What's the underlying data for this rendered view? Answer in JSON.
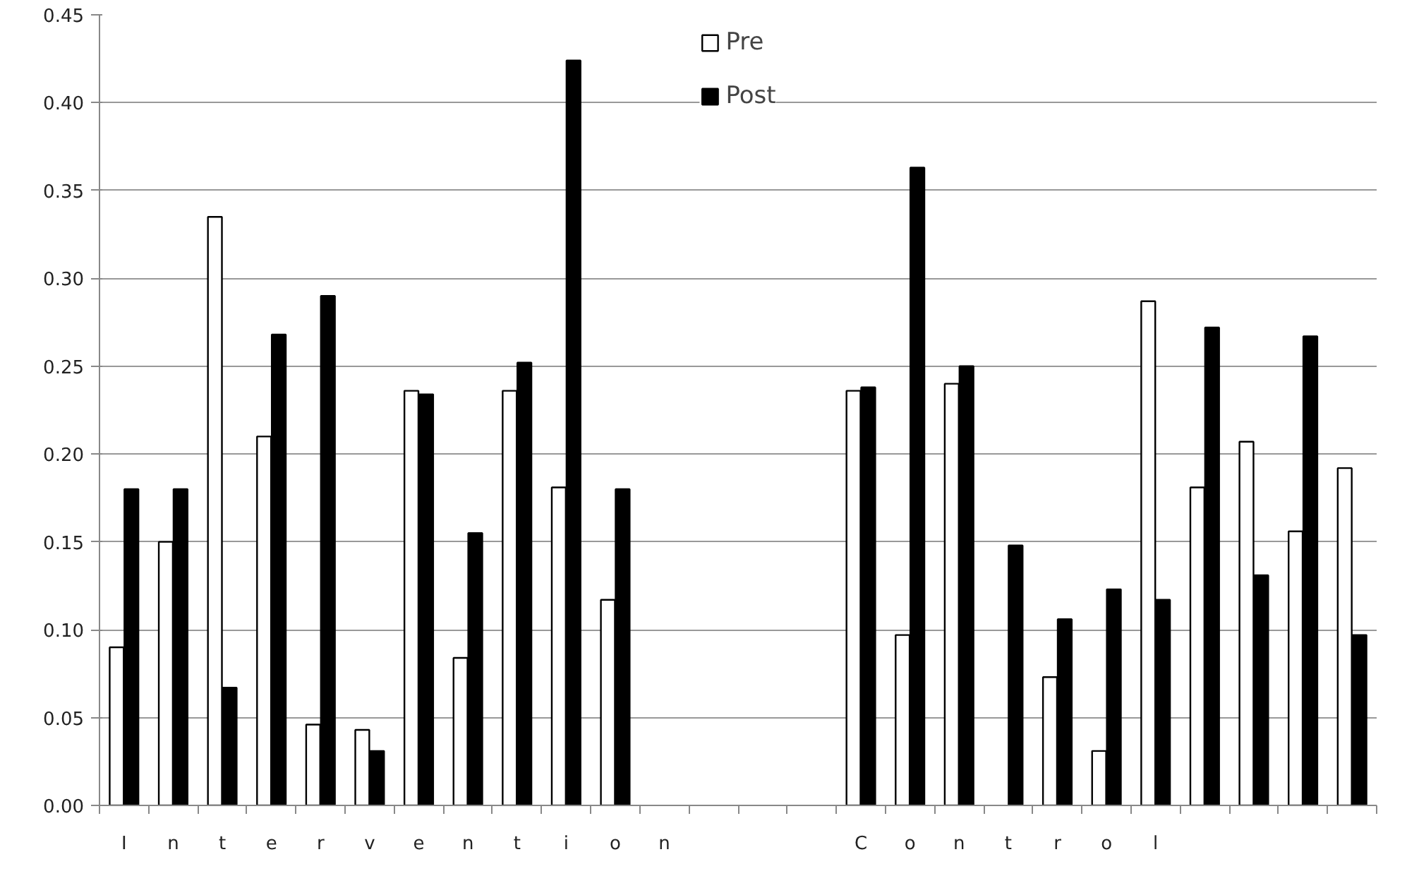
{
  "chart_data": {
    "type": "bar",
    "categories": [
      "I",
      "n",
      "t",
      "e",
      "r",
      "v",
      "e",
      "n",
      "t",
      "i",
      "o",
      "n",
      null,
      null,
      null,
      "C",
      "o",
      "n",
      "t",
      "r",
      "o",
      "l",
      null,
      null,
      null,
      null
    ],
    "series": [
      {
        "name": "Pre",
        "color": "#ffffff",
        "values": [
          0.09,
          0.15,
          0.335,
          0.21,
          0.046,
          0.043,
          0.236,
          0.084,
          0.236,
          0.181,
          0.117,
          null,
          null,
          null,
          null,
          0.236,
          0.097,
          0.24,
          null,
          0.073,
          0.031,
          0.287,
          0.181,
          0.207,
          0.156,
          0.192
        ]
      },
      {
        "name": "Post",
        "color": "#000000",
        "values": [
          0.18,
          0.18,
          0.067,
          0.268,
          0.29,
          0.031,
          0.234,
          0.155,
          0.252,
          0.424,
          0.18,
          null,
          null,
          null,
          null,
          0.238,
          0.363,
          0.25,
          0.148,
          0.106,
          0.123,
          0.117,
          0.272,
          0.131,
          0.267,
          0.097
        ]
      }
    ],
    "ylim": [
      0,
      0.45
    ],
    "yticks": [
      {
        "value": 0,
        "label": "0.00"
      },
      {
        "value": 0.05,
        "label": "0.05"
      },
      {
        "value": 0.1,
        "label": "0.10"
      },
      {
        "value": 0.15,
        "label": "0.15"
      },
      {
        "value": 0.2,
        "label": "0.20"
      },
      {
        "value": 0.25,
        "label": "0.25"
      },
      {
        "value": 0.3,
        "label": "0.30"
      },
      {
        "value": 0.35,
        "label": "0.35"
      },
      {
        "value": 0.4,
        "label": "0.40"
      },
      {
        "value": 0.45,
        "label": "0.45"
      }
    ],
    "grid": "y",
    "legend": "top"
  }
}
